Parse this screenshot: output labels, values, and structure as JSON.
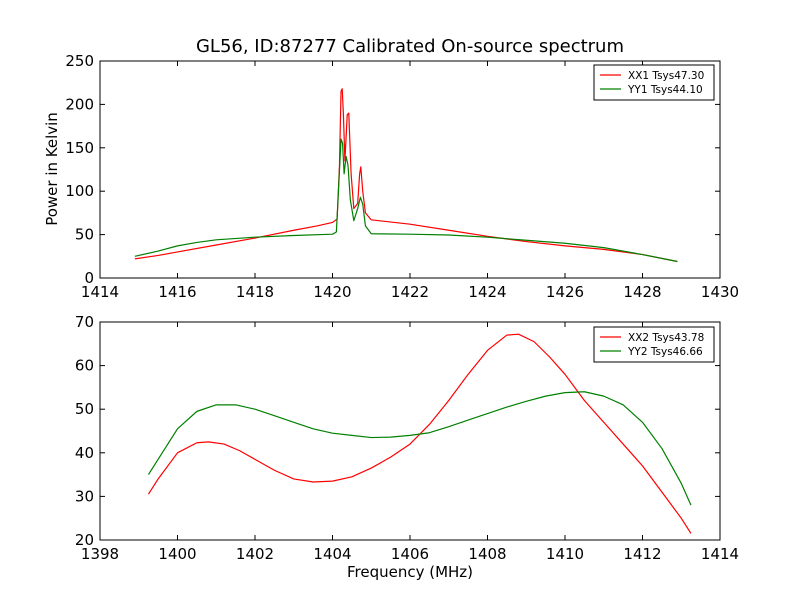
{
  "chart_title": "GL56, ID:87277 Calibrated On-source spectrum",
  "colors": {
    "xx": "#ff0000",
    "yy": "#008000"
  },
  "chart_data": [
    {
      "type": "line",
      "title": "GL56, ID:87277 Calibrated On-source spectrum",
      "xlabel": "",
      "ylabel": "Power in Kelvin",
      "xlim": [
        1414,
        1430
      ],
      "ylim": [
        0,
        250
      ],
      "xticks": [
        "1414",
        "1416",
        "1418",
        "1420",
        "1422",
        "1424",
        "1426",
        "1428",
        "1430"
      ],
      "yticks": [
        "0",
        "50",
        "100",
        "150",
        "200",
        "250"
      ],
      "legend_position": "top-right",
      "grid": false,
      "series": [
        {
          "name": "XX1 Tsys47.30",
          "color": "#ff0000",
          "points": [
            [
              1414.9,
              22
            ],
            [
              1415.5,
              26
            ],
            [
              1416,
              30
            ],
            [
              1417,
              38
            ],
            [
              1418,
              46
            ],
            [
              1419,
              55
            ],
            [
              1419.6,
              60
            ],
            [
              1420,
              64
            ],
            [
              1420.12,
              68
            ],
            [
              1420.18,
              130
            ],
            [
              1420.22,
              215
            ],
            [
              1420.25,
              218
            ],
            [
              1420.28,
              190
            ],
            [
              1420.32,
              135
            ],
            [
              1420.38,
              188
            ],
            [
              1420.42,
              190
            ],
            [
              1420.48,
              120
            ],
            [
              1420.55,
              80
            ],
            [
              1420.65,
              86
            ],
            [
              1420.7,
              120
            ],
            [
              1420.73,
              128
            ],
            [
              1420.78,
              100
            ],
            [
              1420.85,
              75
            ],
            [
              1421,
              67
            ],
            [
              1422,
              62
            ],
            [
              1423,
              55
            ],
            [
              1424,
              48
            ],
            [
              1425,
              42
            ],
            [
              1426,
              37
            ],
            [
              1427,
              33
            ],
            [
              1428,
              27
            ],
            [
              1428.9,
              19
            ]
          ]
        },
        {
          "name": "YY1 Tsys44.10",
          "color": "#008000",
          "points": [
            [
              1414.9,
              25
            ],
            [
              1415.5,
              31
            ],
            [
              1416,
              37
            ],
            [
              1416.5,
              41
            ],
            [
              1417,
              44
            ],
            [
              1418,
              47
            ],
            [
              1419,
              49
            ],
            [
              1420,
              50.5
            ],
            [
              1420.1,
              53
            ],
            [
              1420.17,
              115
            ],
            [
              1420.22,
              160
            ],
            [
              1420.26,
              155
            ],
            [
              1420.3,
              120
            ],
            [
              1420.35,
              140
            ],
            [
              1420.4,
              130
            ],
            [
              1420.46,
              90
            ],
            [
              1420.55,
              66
            ],
            [
              1420.65,
              80
            ],
            [
              1420.72,
              93
            ],
            [
              1420.78,
              85
            ],
            [
              1420.85,
              60
            ],
            [
              1421,
              51
            ],
            [
              1422,
              50.5
            ],
            [
              1423,
              49.5
            ],
            [
              1424,
              47
            ],
            [
              1425,
              43.5
            ],
            [
              1426,
              40
            ],
            [
              1427,
              35
            ],
            [
              1428,
              27
            ],
            [
              1428.9,
              19
            ]
          ]
        }
      ]
    },
    {
      "type": "line",
      "title": "",
      "xlabel": "Frequency (MHz)",
      "ylabel": "",
      "xlim": [
        1398,
        1414
      ],
      "ylim": [
        20,
        70
      ],
      "xticks": [
        "1398",
        "1400",
        "1402",
        "1404",
        "1406",
        "1408",
        "1410",
        "1412",
        "1414"
      ],
      "yticks": [
        "20",
        "30",
        "40",
        "50",
        "60",
        "70"
      ],
      "legend_position": "top-right",
      "grid": false,
      "series": [
        {
          "name": "XX2 Tsys43.78",
          "color": "#ff0000",
          "points": [
            [
              1399.25,
              30.5
            ],
            [
              1399.5,
              34
            ],
            [
              1400,
              40
            ],
            [
              1400.5,
              42.3
            ],
            [
              1400.8,
              42.5
            ],
            [
              1401.2,
              42
            ],
            [
              1401.6,
              40.5
            ],
            [
              1402,
              38.5
            ],
            [
              1402.5,
              36
            ],
            [
              1403,
              34
            ],
            [
              1403.5,
              33.3
            ],
            [
              1404,
              33.5
            ],
            [
              1404.5,
              34.5
            ],
            [
              1405,
              36.5
            ],
            [
              1405.5,
              39
            ],
            [
              1406,
              42
            ],
            [
              1406.5,
              46.5
            ],
            [
              1407,
              52
            ],
            [
              1407.5,
              58
            ],
            [
              1408,
              63.5
            ],
            [
              1408.5,
              67
            ],
            [
              1408.8,
              67.2
            ],
            [
              1409.2,
              65.5
            ],
            [
              1409.6,
              62
            ],
            [
              1410,
              58
            ],
            [
              1410.5,
              52
            ],
            [
              1411,
              47
            ],
            [
              1411.5,
              42
            ],
            [
              1412,
              37
            ],
            [
              1412.5,
              31
            ],
            [
              1413,
              25
            ],
            [
              1413.25,
              21.5
            ]
          ]
        },
        {
          "name": "YY2 Tsys46.66",
          "color": "#008000",
          "points": [
            [
              1399.25,
              35
            ],
            [
              1399.5,
              38.5
            ],
            [
              1400,
              45.5
            ],
            [
              1400.5,
              49.5
            ],
            [
              1401,
              51
            ],
            [
              1401.5,
              51
            ],
            [
              1402,
              50
            ],
            [
              1402.5,
              48.5
            ],
            [
              1403,
              47
            ],
            [
              1403.5,
              45.5
            ],
            [
              1404,
              44.5
            ],
            [
              1404.5,
              44
            ],
            [
              1405,
              43.5
            ],
            [
              1405.5,
              43.6
            ],
            [
              1406,
              44
            ],
            [
              1406.5,
              44.6
            ],
            [
              1407,
              46
            ],
            [
              1407.5,
              47.5
            ],
            [
              1408,
              49
            ],
            [
              1408.5,
              50.5
            ],
            [
              1409,
              51.8
            ],
            [
              1409.5,
              53
            ],
            [
              1410,
              53.8
            ],
            [
              1410.5,
              54
            ],
            [
              1411,
              53
            ],
            [
              1411.5,
              51
            ],
            [
              1412,
              47
            ],
            [
              1412.5,
              41
            ],
            [
              1413,
              33
            ],
            [
              1413.25,
              28
            ]
          ]
        }
      ]
    }
  ]
}
